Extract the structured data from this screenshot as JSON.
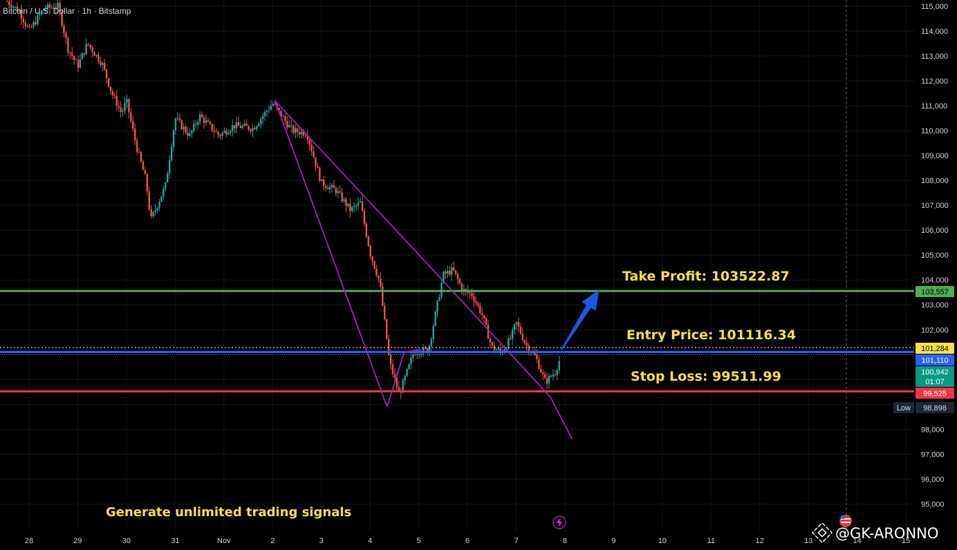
{
  "symbol": {
    "title": "Bitcoin / U.S. Dollar · 1h · Bitstamp"
  },
  "annotations": {
    "take_profit": "Take Profit: 103522.87",
    "entry": "Entry Price: 101116.34",
    "stop_loss": "Stop Loss: 99511.99",
    "footer": "Generate unlimited  trading signals"
  },
  "price_badges": {
    "take_profit": "103,557",
    "current_high": "101,284",
    "entry": "101,110",
    "last_price": "100,942",
    "countdown": "01:07",
    "stop": "99,525",
    "low_label": "Low",
    "low_value": "98,898"
  },
  "watermark": "@GK-ARONNO",
  "colors": {
    "background": "#000000",
    "bull": "#26a69a",
    "bear": "#ef5350",
    "take_profit_line": "#4caf50",
    "entry_line": "#2962ff",
    "stop_line": "#f23645",
    "pattern": "#9c27b0",
    "arrow": "#1e53e5",
    "annotation_text": "#f5e04a"
  },
  "chart_data": {
    "type": "candlestick",
    "title": "Bitcoin / U.S. Dollar · 1h · Bitstamp",
    "ylim": [
      94000,
      115200
    ],
    "y_ticks": [
      115000,
      114000,
      113000,
      112000,
      111000,
      110000,
      109000,
      108000,
      107000,
      106000,
      105000,
      104000,
      103000,
      102000,
      101000,
      100000,
      99000,
      98000,
      97000,
      96000,
      95000
    ],
    "y_tick_labels": [
      "115,000",
      "114,000",
      "113,000",
      "112,000",
      "111,000",
      "110,000",
      "109,000",
      "108,000",
      "107,000",
      "106,000",
      "105,000",
      "104,000",
      "103,000",
      "102,000",
      "",
      "",
      "",
      "98,000",
      "97,000",
      "96,000",
      "95,000"
    ],
    "x_tick_labels": [
      "28",
      "29",
      "30",
      "31",
      "Nov",
      "2",
      "3",
      "4",
      "5",
      "6",
      "7",
      "8",
      "9",
      "10",
      "11",
      "12",
      "13",
      "14",
      "15"
    ],
    "horizontal_levels": {
      "take_profit": 103557,
      "entry": 101110,
      "stop_loss": 99525,
      "current_high": 101284
    },
    "price_path_x": [
      27.55,
      27.8,
      28.0,
      28.3,
      28.6,
      28.8,
      29.0,
      29.2,
      29.5,
      29.7,
      29.9,
      30.0,
      30.2,
      30.4,
      30.5,
      30.8,
      31.0,
      31.3,
      31.5,
      31.9,
      32.2,
      32.6,
      33.0,
      33.4,
      33.7,
      34.0,
      34.3,
      34.6,
      34.8,
      35.0,
      35.2,
      35.4,
      35.6,
      35.9,
      36.2,
      36.5,
      36.7,
      36.9,
      37.1,
      37.3,
      37.5,
      37.7,
      37.9,
      38.0,
      38.2,
      38.4,
      38.6,
      38.8,
      38.92
    ],
    "price_path_y": [
      115200,
      114800,
      114000,
      114900,
      115000,
      113300,
      112600,
      113500,
      112700,
      111500,
      110700,
      111200,
      109400,
      108000,
      106400,
      107800,
      110500,
      109800,
      110600,
      109800,
      110200,
      110100,
      111100,
      110000,
      109900,
      107900,
      107600,
      106800,
      107100,
      105100,
      103900,
      100700,
      99400,
      101100,
      101200,
      104200,
      104400,
      103600,
      103400,
      102600,
      101300,
      101100,
      101700,
      102300,
      101400,
      100900,
      99900,
      100300,
      100942
    ],
    "pattern_falling_wedge": {
      "upper": [
        {
          "x": 33.05,
          "y": 111200
        },
        {
          "x": 36.2,
          "y": 104600
        },
        {
          "x": 38.7,
          "y": 99300
        },
        {
          "x": 39.15,
          "y": 97600
        }
      ],
      "lower": [
        {
          "x": 33.05,
          "y": 111200
        },
        {
          "x": 35.35,
          "y": 98900
        },
        {
          "x": 35.7,
          "y": 101100
        },
        {
          "x": 36.05,
          "y": 101200
        }
      ]
    },
    "arrow": {
      "from": {
        "x": 38.93,
        "y": 101200
      },
      "to": {
        "x": 39.7,
        "y": 103600
      }
    }
  }
}
